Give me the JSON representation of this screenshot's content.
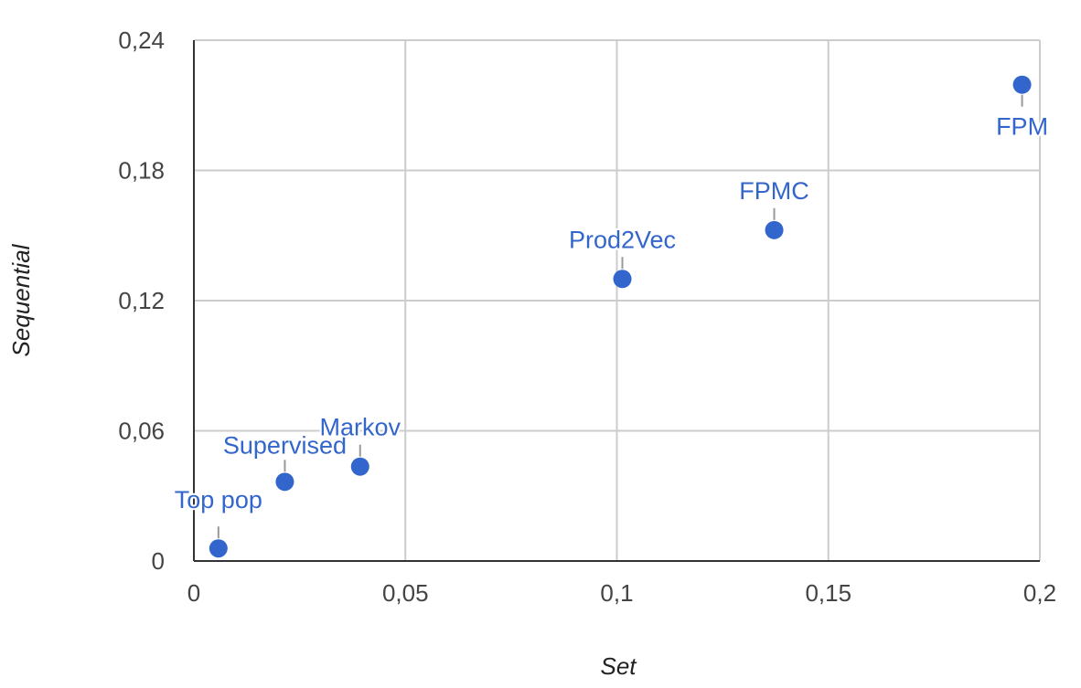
{
  "chart_data": {
    "type": "scatter",
    "xlabel": "Set",
    "ylabel": "Sequential",
    "xlim": [
      0,
      0.2
    ],
    "ylim": [
      0,
      0.24
    ],
    "x_ticks": [
      "0",
      "0,05",
      "0,1",
      "0,15",
      "0,2"
    ],
    "y_ticks": [
      "0",
      "0,06",
      "0,12",
      "0,18",
      "0,24"
    ],
    "grid": true,
    "point_color": "#3366cc",
    "points": [
      {
        "label": "Top pop",
        "x": 0.0058,
        "y": 0.0058
      },
      {
        "label": "Supervised",
        "x": 0.0215,
        "y": 0.0365
      },
      {
        "label": "Markov",
        "x": 0.0393,
        "y": 0.0435
      },
      {
        "label": "Prod2Vec",
        "x": 0.1013,
        "y": 0.13
      },
      {
        "label": "FPMC",
        "x": 0.1372,
        "y": 0.1525
      },
      {
        "label": "FPM",
        "x": 0.1958,
        "y": 0.2195
      }
    ]
  }
}
